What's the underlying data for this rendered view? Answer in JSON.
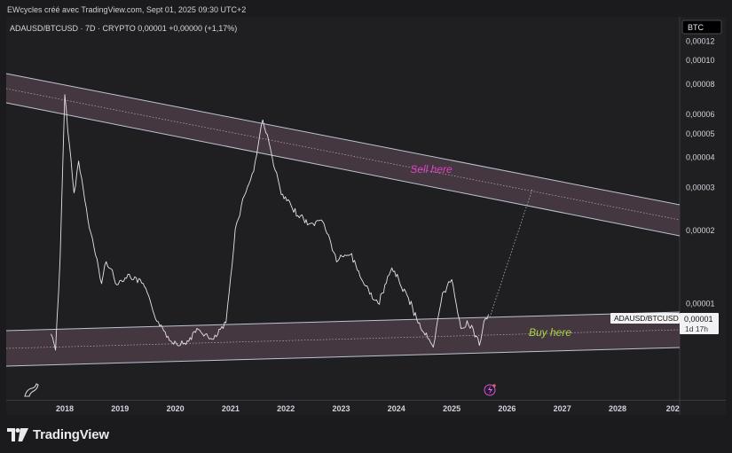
{
  "caption": "EWcycles créé avec TradingView.com, Sept 01, 2025 09:30 UTC+2",
  "symbol_line": "ADAUSD/BTCUSD · 7D · CRYPTO  0,00001  +0,00000  (+1,17%)",
  "footer_brand": "TradingView",
  "colors": {
    "channel_fill": "#51404a",
    "channel_edge": "#b9c6d4",
    "price_line": "#e2e3e7",
    "sell_label": "#e040c8",
    "buy_label": "#a8d848",
    "projection": "#a8b4c4",
    "axis_text": "#d1d4dc"
  },
  "chart_data": {
    "type": "line",
    "symbol": "ADAUSD/BTCUSD",
    "scale": "log",
    "currency_label": "BTC",
    "x_ticks": [
      "2018",
      "2019",
      "2020",
      "2021",
      "2022",
      "2023",
      "2024",
      "2025",
      "2026",
      "2027",
      "2028",
      "202"
    ],
    "y_ticks": [
      "0,00012",
      "0,00010",
      "0,00008",
      "0,00006",
      "0,00005",
      "0,00004",
      "0,00003",
      "0,00002",
      "0,00001"
    ],
    "last_price": {
      "label": "ADAUSD/BTCUSD",
      "value": "0,00001",
      "countdown": "1d 17h"
    },
    "annotations": [
      {
        "text": "Sell here",
        "color": "#e040c8"
      },
      {
        "text": "Buy here",
        "color": "#a8d848"
      }
    ],
    "series": [
      {
        "points": [
          [
            "2017-10",
            7.5e-06
          ],
          [
            "2017-11",
            6.5e-06
          ],
          [
            "2017-12",
            1.5e-05
          ],
          [
            "2018-01",
            7.2e-05
          ],
          [
            "2018-02",
            4.5e-05
          ],
          [
            "2018-03",
            2.8e-05
          ],
          [
            "2018-04",
            3.8e-05
          ],
          [
            "2018-05",
            3e-05
          ],
          [
            "2018-06",
            2.2e-05
          ],
          [
            "2018-07",
            1.8e-05
          ],
          [
            "2018-08",
            1.5e-05
          ],
          [
            "2018-09",
            1.2e-05
          ],
          [
            "2018-10",
            1.5e-05
          ],
          [
            "2018-11",
            1.4e-05
          ],
          [
            "2018-12",
            1.2e-05
          ],
          [
            "2019-03",
            1.3e-05
          ],
          [
            "2019-06",
            1.2e-05
          ],
          [
            "2019-09",
            8.5e-06
          ],
          [
            "2019-12",
            7e-06
          ],
          [
            "2020-03",
            6.8e-06
          ],
          [
            "2020-06",
            7.8e-06
          ],
          [
            "2020-09",
            7e-06
          ],
          [
            "2020-12",
            8.2e-06
          ],
          [
            "2021-02",
            2e-05
          ],
          [
            "2021-04",
            2.8e-05
          ],
          [
            "2021-06",
            3.5e-05
          ],
          [
            "2021-08",
            5.8e-05
          ],
          [
            "2021-10",
            4e-05
          ],
          [
            "2021-12",
            2.8e-05
          ],
          [
            "2022-03",
            2.4e-05
          ],
          [
            "2022-06",
            2.1e-05
          ],
          [
            "2022-09",
            2.2e-05
          ],
          [
            "2022-12",
            1.5e-05
          ],
          [
            "2023-03",
            1.6e-05
          ],
          [
            "2023-06",
            1.2e-05
          ],
          [
            "2023-09",
            9.8e-06
          ],
          [
            "2023-12",
            1.4e-05
          ],
          [
            "2024-03",
            1.1e-05
          ],
          [
            "2024-06",
            8.2e-06
          ],
          [
            "2024-09",
            6.5e-06
          ],
          [
            "2024-11",
            1.1e-05
          ],
          [
            "2025-01",
            1.25e-05
          ],
          [
            "2025-03",
            8e-06
          ],
          [
            "2025-05",
            8.2e-06
          ],
          [
            "2025-07",
            6.8e-06
          ],
          [
            "2025-08",
            8.2e-06
          ],
          [
            "2025-09",
            9e-06
          ]
        ]
      }
    ]
  }
}
